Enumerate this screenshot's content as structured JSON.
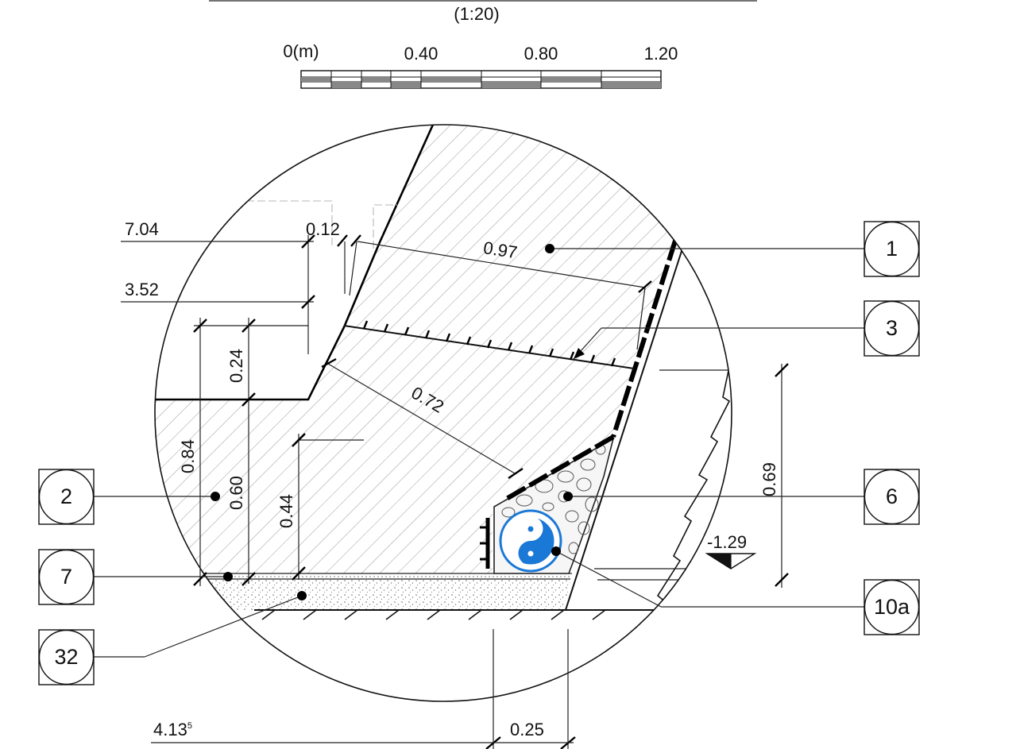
{
  "scale": {
    "ratio": "(1:20)",
    "labels": [
      "0(m)",
      "0.40",
      "0.80",
      "1.20"
    ]
  },
  "dimensions": {
    "d_704": "7.04",
    "d_012": "0.12",
    "d_352": "3.52",
    "d_097": "0.97",
    "d_024": "0.24",
    "d_072": "0.72",
    "d_084": "0.84",
    "d_060": "0.60",
    "d_044": "0.44",
    "d_069": "0.69",
    "d_129": "-1.29",
    "d_4135": "4.13",
    "d_4135_sup": "5",
    "d_025": "0.25"
  },
  "callouts": {
    "c1": "1",
    "c3": "3",
    "c6": "6",
    "c10a": "10a",
    "c2": "2",
    "c7": "7",
    "c32": "32"
  },
  "colors": {
    "pipe": "#1a78d6",
    "line": "#111111",
    "hatch": "#9a9a9a"
  }
}
